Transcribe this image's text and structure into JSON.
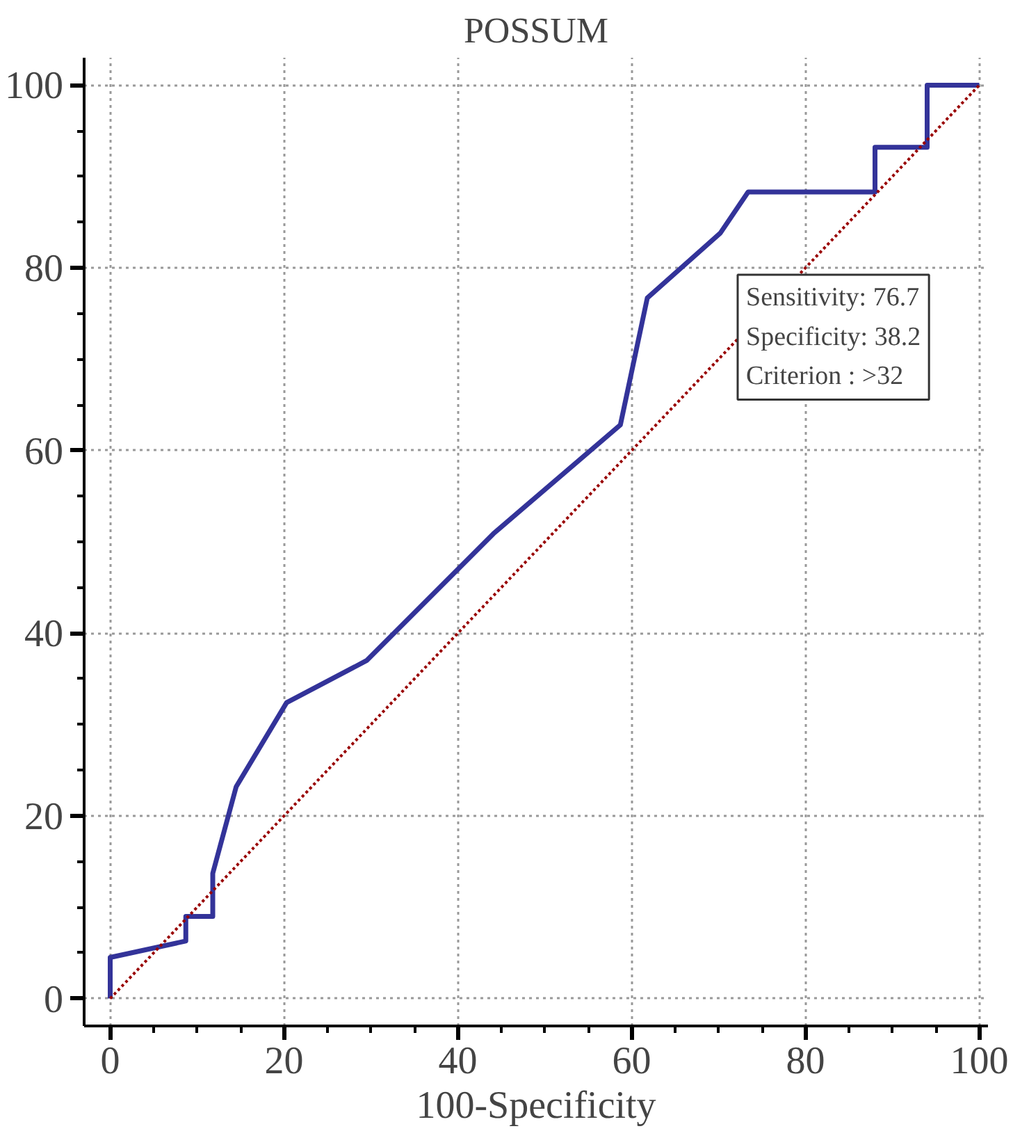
{
  "chart_data": {
    "type": "line",
    "title": "POSSUM",
    "xlabel": "100-Specificity",
    "series": [
      {
        "color": "#333399",
        "line_style": "solid",
        "x": [
          0,
          0,
          8.7,
          8.7,
          11.8,
          11.8,
          14.5,
          20.3,
          29.5,
          44.1,
          58.7,
          61.8,
          70.2,
          73.4,
          88,
          88,
          94,
          94,
          100
        ],
        "values": [
          0,
          4.5,
          6.3,
          9,
          9,
          13.7,
          23.2,
          32.4,
          37,
          50.9,
          62.8,
          76.7,
          83.8,
          88.3,
          88.3,
          93.2,
          93.2,
          100,
          100
        ]
      },
      {
        "color": "#990000",
        "line_style": "dotted",
        "x": [
          0,
          100
        ],
        "values": [
          0,
          100
        ]
      }
    ],
    "xlim": [
      -3,
      101
    ],
    "ylim": [
      -3,
      103
    ],
    "xticks": [
      0,
      20,
      40,
      60,
      80,
      100
    ],
    "yticks": [
      0,
      20,
      40,
      60,
      80,
      100
    ],
    "grid": true,
    "marker": "none",
    "annotations": [
      "Sensitivity: 76.7",
      "Specificity: 38.2",
      "Criterion : >32"
    ]
  }
}
